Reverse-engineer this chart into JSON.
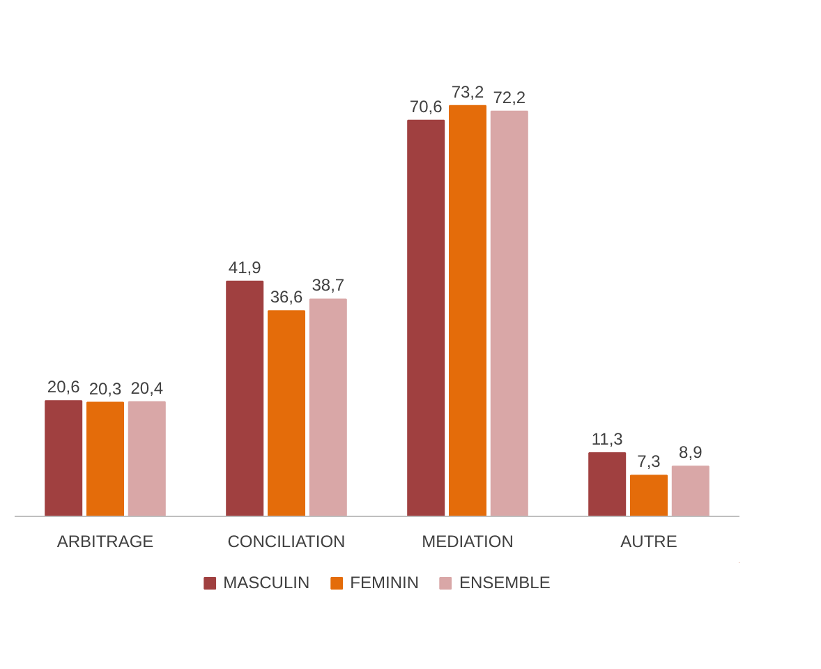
{
  "chart_data": {
    "type": "bar",
    "categories": [
      "ARBITRAGE",
      "CONCILIATION",
      "MEDIATION",
      "AUTRE"
    ],
    "series": [
      {
        "name": "MASCULIN",
        "color": "#a04040",
        "values": [
          20.6,
          41.9,
          70.6,
          11.3
        ],
        "value_labels": [
          "20,6",
          "41,9",
          "70,6",
          "11,3"
        ]
      },
      {
        "name": "FEMININ",
        "color": "#e46c0a",
        "values": [
          20.3,
          36.6,
          73.2,
          7.3
        ],
        "value_labels": [
          "20,3",
          "36,6",
          "73,2",
          "7,3"
        ]
      },
      {
        "name": "ENSEMBLE",
        "color": "#d9a7a7",
        "values": [
          20.4,
          38.7,
          72.2,
          8.9
        ],
        "value_labels": [
          "20,4",
          "38,7",
          "72,2",
          "8,9"
        ]
      }
    ],
    "legend": "bottom"
  }
}
